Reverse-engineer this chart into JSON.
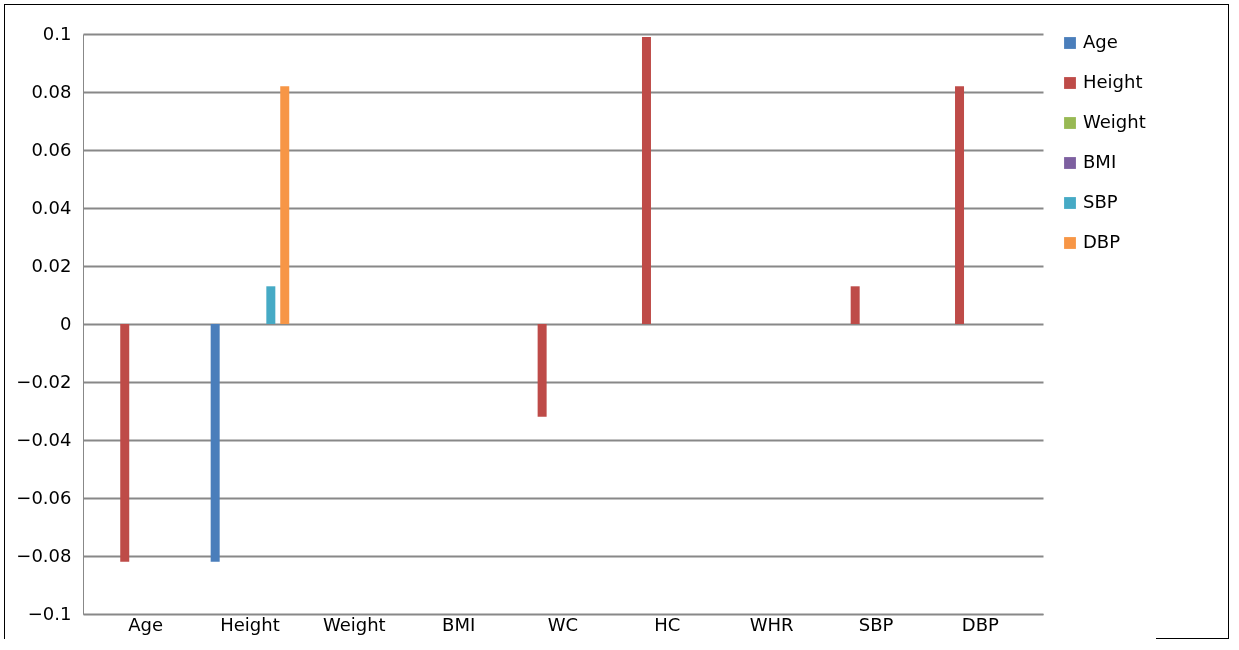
{
  "chart_data": {
    "type": "bar",
    "categories": [
      "Age",
      "Height",
      "Weight",
      "BMI",
      "WC",
      "HC",
      "WHR",
      "SBP",
      "DBP"
    ],
    "series": [
      {
        "name": "Age",
        "color": "#4a7ebb",
        "values": [
          0,
          -0.082,
          0,
          0,
          0,
          0,
          0,
          0,
          0
        ]
      },
      {
        "name": "Height",
        "color": "#be4b48",
        "values": [
          -0.082,
          0,
          0,
          0,
          -0.032,
          0.099,
          0,
          0.013,
          0.082
        ]
      },
      {
        "name": "Weight",
        "color": "#98b954",
        "values": [
          0,
          0,
          0,
          0,
          0,
          0,
          0,
          0,
          0
        ]
      },
      {
        "name": "BMI",
        "color": "#7d60a0",
        "values": [
          0,
          0,
          0,
          0,
          0,
          0,
          0,
          0,
          0
        ]
      },
      {
        "name": "SBP",
        "color": "#46aac5",
        "values": [
          0,
          0.013,
          0,
          0,
          0,
          0,
          0,
          0,
          0
        ]
      },
      {
        "name": "DBP",
        "color": "#f79646",
        "values": [
          0,
          0.082,
          0,
          0,
          0,
          0,
          0,
          0,
          0
        ]
      }
    ],
    "ylim": [
      -0.1,
      0.1
    ],
    "yticks": [
      -0.1,
      -0.08,
      -0.06,
      -0.04,
      -0.02,
      0,
      0.02,
      0.04,
      0.06,
      0.08,
      0.1
    ],
    "grid": "y",
    "legend": "right"
  }
}
